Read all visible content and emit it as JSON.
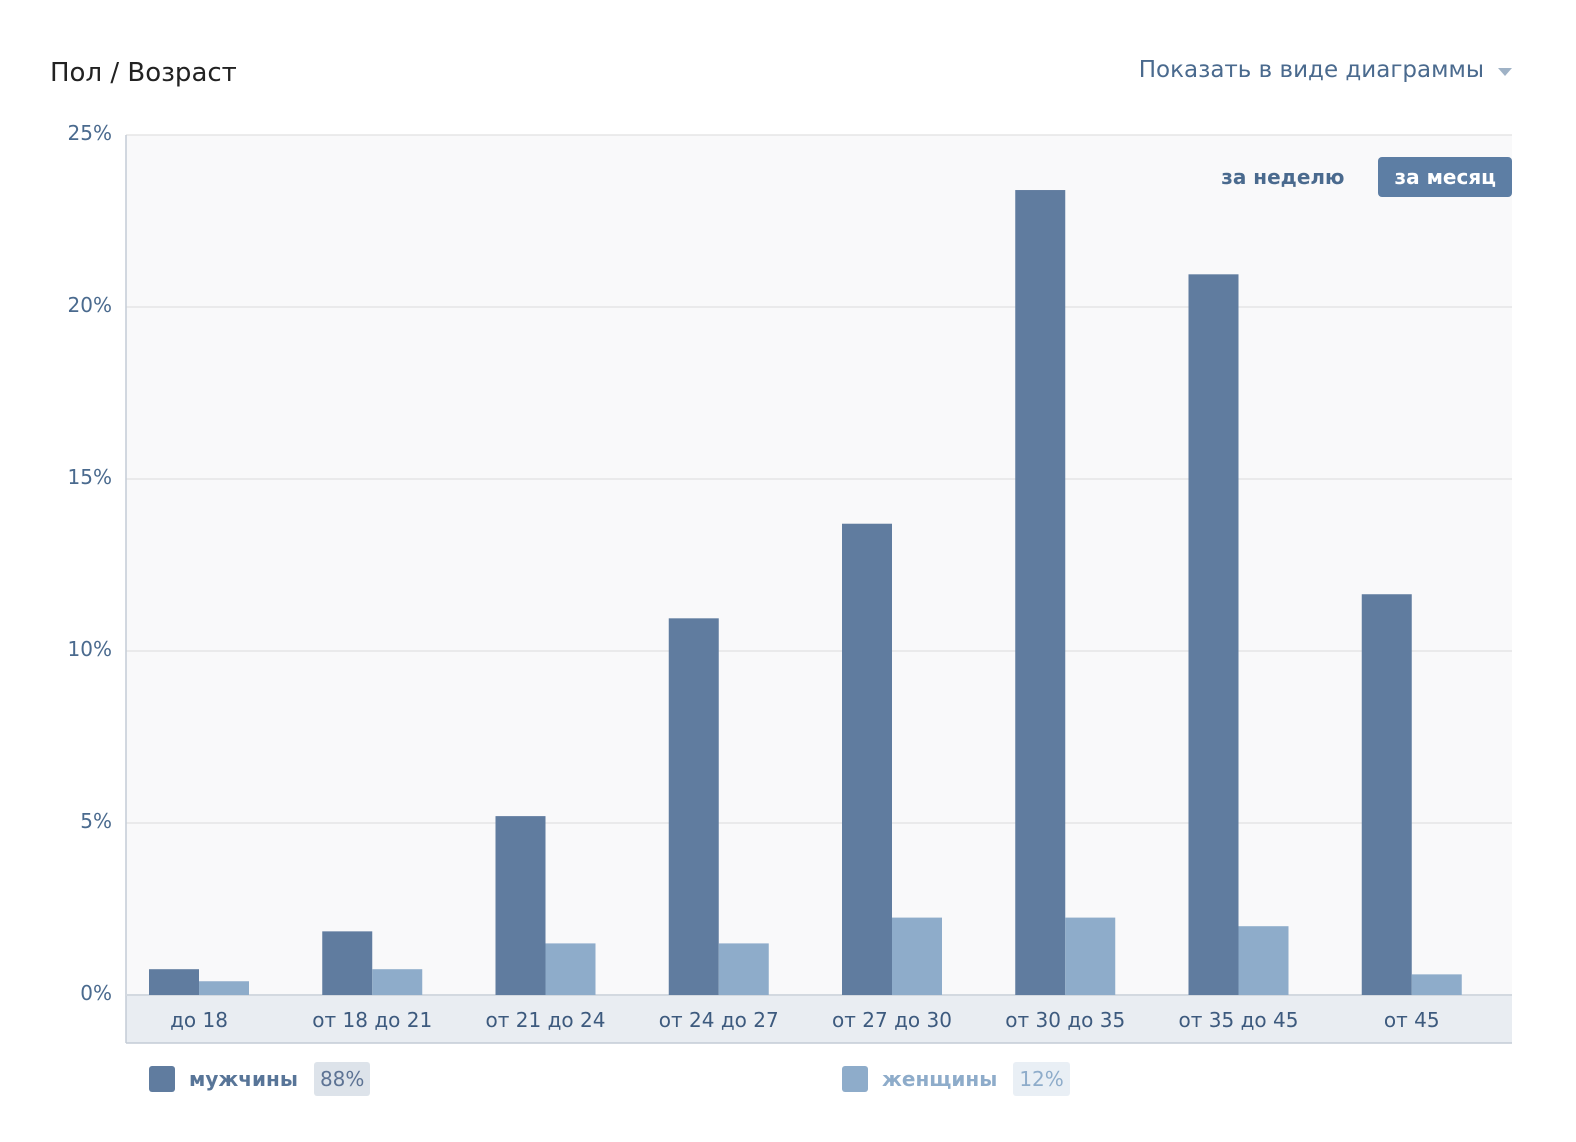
{
  "header": {
    "title": "Пол / Возраст",
    "view_toggle_label": "Показать в виде диаграммы"
  },
  "period_switch": {
    "week_label": "за неделю",
    "month_label": "за месяц",
    "active": "month"
  },
  "colors": {
    "men": "#607c9f",
    "women": "#8eacca",
    "plot_bg": "#f9f9fa",
    "axis_band": "#e9edf2",
    "gridline": "#e6e6e6"
  },
  "legend": [
    {
      "label": "мужчины",
      "percent": "88%",
      "color": "#607c9f",
      "label_color": "#587598",
      "pct_bg": "#dde3ea",
      "pct_color": "#5d7394"
    },
    {
      "label": "женщины",
      "percent": "12%",
      "color": "#8eacca",
      "label_color": "#8eacca",
      "pct_bg": "#e9eff5",
      "pct_color": "#8eacca"
    }
  ],
  "chart_data": {
    "type": "bar",
    "categories": [
      "до 18",
      "от 18 до 21",
      "от 21 до 24",
      "от 24 до 27",
      "от 27 до 30",
      "от 30 до 35",
      "от 35 до 45",
      "от 45"
    ],
    "series": [
      {
        "name": "мужчины",
        "values": [
          0.75,
          1.85,
          5.2,
          10.95,
          13.7,
          23.4,
          20.95,
          11.65
        ]
      },
      {
        "name": "женщины",
        "values": [
          0.4,
          0.75,
          1.5,
          1.5,
          2.25,
          2.25,
          2.0,
          0.6
        ]
      }
    ],
    "yticks": [
      "0%",
      "5%",
      "10%",
      "15%",
      "20%",
      "25%"
    ],
    "ylim": [
      0,
      25
    ],
    "grid": true,
    "legend_position": "bottom"
  }
}
